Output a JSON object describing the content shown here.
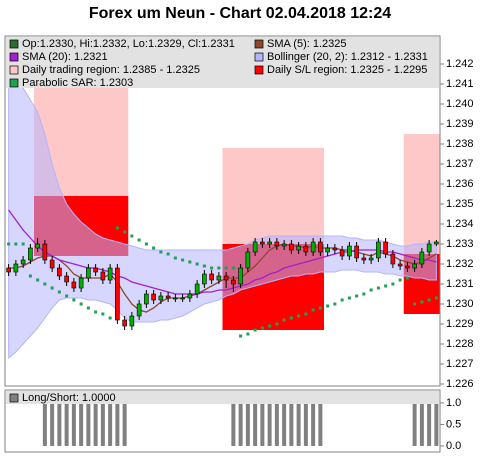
{
  "chart_data": [
    {
      "type": "candlestick",
      "title": "Forex um Neun - Chart 02.04.2018 12:24",
      "ohlc_label": "Op:1.2330, Hi:1.2332, Lo:1.2329, Cl:1.2331",
      "ohlc_color": "#2e6b2e",
      "up_color": "#00b000",
      "down_color": "#ff0000",
      "ylim": [
        1.2259,
        1.2434
      ],
      "yticks": [
        1.226,
        1.227,
        1.228,
        1.229,
        {
          "value": 1.23,
          "label": "1.230"
        },
        1.231,
        1.232,
        1.233,
        1.234,
        1.235,
        1.236,
        1.237,
        1.238,
        1.239,
        {
          "value": 1.24,
          "label": "1.240"
        },
        1.241,
        1.242
      ],
      "open": [
        1.2318,
        1.2316,
        1.232,
        1.2322,
        1.2328,
        1.233,
        1.2322,
        1.2318,
        1.2314,
        1.2311,
        1.2308,
        1.2313,
        1.2318,
        1.2316,
        1.2312,
        1.2318,
        1.2292,
        1.2289,
        1.2294,
        1.23,
        1.2305,
        1.2302,
        1.2304,
        1.2303,
        1.2303,
        1.2303,
        1.2305,
        1.231,
        1.2315,
        1.2312,
        1.2314,
        1.2312,
        1.231,
        1.2318,
        1.2326,
        1.2331,
        1.233,
        1.2331,
        1.2329,
        1.233,
        1.2327,
        1.2329,
        1.2326,
        1.2331,
        1.2326,
        1.2328,
        1.2327,
        1.2324,
        1.2329,
        1.2323,
        1.2322,
        1.2323,
        1.2331,
        1.2325,
        1.232,
        1.2319,
        1.2318,
        1.232,
        1.2326,
        1.233
      ],
      "high": [
        1.232,
        1.2322,
        1.2324,
        1.233,
        1.2333,
        1.2332,
        1.2324,
        1.232,
        1.2316,
        1.2313,
        1.2315,
        1.232,
        1.232,
        1.2318,
        1.232,
        1.232,
        1.2294,
        1.2296,
        1.2302,
        1.2307,
        1.2307,
        1.2306,
        1.2306,
        1.2305,
        1.2305,
        1.2307,
        1.2312,
        1.2317,
        1.2317,
        1.2316,
        1.2316,
        1.2314,
        1.232,
        1.2328,
        1.2333,
        1.2333,
        1.2333,
        1.2333,
        1.2332,
        1.2332,
        1.2331,
        1.2331,
        1.2333,
        1.2333,
        1.233,
        1.233,
        1.2329,
        1.2331,
        1.2331,
        1.2325,
        1.2325,
        1.2333,
        1.2333,
        1.2327,
        1.2322,
        1.2321,
        1.2322,
        1.2328,
        1.2332,
        1.2332
      ],
      "low": [
        1.2314,
        1.2314,
        1.2318,
        1.232,
        1.2326,
        1.232,
        1.2316,
        1.2312,
        1.2309,
        1.2306,
        1.2306,
        1.2311,
        1.2314,
        1.231,
        1.231,
        1.229,
        1.2287,
        1.2287,
        1.2292,
        1.2298,
        1.23,
        1.23,
        1.2301,
        1.2301,
        1.2301,
        1.2301,
        1.2303,
        1.2308,
        1.231,
        1.231,
        1.2308,
        1.2306,
        1.2308,
        1.2316,
        1.2324,
        1.2328,
        1.2328,
        1.2327,
        1.2327,
        1.2325,
        1.2325,
        1.2324,
        1.2324,
        1.2324,
        1.2324,
        1.2325,
        1.2322,
        1.2322,
        1.2321,
        1.232,
        1.232,
        1.2321,
        1.2323,
        1.2318,
        1.2317,
        1.2316,
        1.2316,
        1.2318,
        1.2324,
        1.2329
      ],
      "close": [
        1.2316,
        1.232,
        1.2322,
        1.2328,
        1.233,
        1.2322,
        1.2318,
        1.2314,
        1.2311,
        1.2308,
        1.2313,
        1.2318,
        1.2316,
        1.2312,
        1.2318,
        1.2292,
        1.2289,
        1.2294,
        1.23,
        1.2305,
        1.2302,
        1.2304,
        1.2303,
        1.2303,
        1.2303,
        1.2305,
        1.231,
        1.2315,
        1.2312,
        1.2314,
        1.2312,
        1.231,
        1.2318,
        1.2326,
        1.2331,
        1.233,
        1.2331,
        1.2329,
        1.233,
        1.2327,
        1.2329,
        1.2326,
        1.2331,
        1.2326,
        1.2328,
        1.2327,
        1.2324,
        1.2329,
        1.2323,
        1.2322,
        1.2323,
        1.2331,
        1.2325,
        1.232,
        1.2319,
        1.2318,
        1.232,
        1.2326,
        1.233,
        1.2331
      ],
      "bands": [
        {
          "name": "Bollinger (20, 2): 1.2312 - 1.2331",
          "color": "#b4b4ff",
          "upper": [
            1.2414,
            1.2412,
            1.2408,
            1.2402,
            1.2396,
            1.2385,
            1.237,
            1.2358,
            1.235,
            1.2345,
            1.2341,
            1.2338,
            1.2335,
            1.2333,
            1.2332,
            1.2331,
            1.233,
            1.2329,
            1.2328,
            1.2327,
            1.2327,
            1.2327,
            1.2327,
            1.2327,
            1.2327,
            1.2327,
            1.2327,
            1.2327,
            1.2327,
            1.2327,
            1.2327,
            1.2328,
            1.2329,
            1.233,
            1.2332,
            1.2333,
            1.2334,
            1.2334,
            1.2334,
            1.2334,
            1.2334,
            1.2334,
            1.2334,
            1.2334,
            1.2334,
            1.2334,
            1.2334,
            1.2333,
            1.2333,
            1.2332,
            1.2332,
            1.2332,
            1.2331,
            1.233,
            1.2329,
            1.2329,
            1.233,
            1.233,
            1.2331,
            1.2331
          ],
          "lower": [
            1.2273,
            1.2276,
            1.228,
            1.2284,
            1.2288,
            1.2293,
            1.2298,
            1.2302,
            1.2303,
            1.2303,
            1.2303,
            1.2302,
            1.2302,
            1.2301,
            1.23,
            1.2297,
            1.2293,
            1.2291,
            1.2291,
            1.2291,
            1.2291,
            1.2292,
            1.2292,
            1.2293,
            1.2294,
            1.2296,
            1.2298,
            1.23,
            1.2301,
            1.2302,
            1.2304,
            1.2305,
            1.2307,
            1.2308,
            1.2309,
            1.231,
            1.2311,
            1.2312,
            1.2313,
            1.2314,
            1.2314,
            1.2315,
            1.2315,
            1.2316,
            1.2316,
            1.2316,
            1.2317,
            1.2317,
            1.2317,
            1.2316,
            1.2316,
            1.2316,
            1.2315,
            1.2315,
            1.2314,
            1.2314,
            1.2313,
            1.2313,
            1.2312,
            1.2312
          ]
        }
      ],
      "regions": [
        {
          "name": "Daily trading region: 1.2385 - 1.2325",
          "color": "#ffc8c8",
          "spans": [
            {
              "start": 4,
              "end": 16,
              "low": 1.2325,
              "high": 1.2415
            },
            {
              "start": 30,
              "end": 43,
              "low": 1.2325,
              "high": 1.2378
            },
            {
              "start": 55,
              "end": 59,
              "low": 1.2325,
              "high": 1.2385
            }
          ]
        },
        {
          "name": "Daily S/L region: 1.2325 - 1.2295",
          "color": "#ff0000",
          "spans": [
            {
              "start": 4,
              "end": 16,
              "low": 1.2324,
              "high": 1.2354
            },
            {
              "start": 30,
              "end": 43,
              "low": 1.2287,
              "high": 1.233
            },
            {
              "start": 55,
              "end": 59,
              "low": 1.2295,
              "high": 1.2325
            }
          ]
        }
      ],
      "series": [
        {
          "name": "SMA (5): 1.2325",
          "color": "#8b4a2b",
          "style": "line",
          "values": [
            1.2318,
            1.2318,
            1.2319,
            1.2321,
            1.2323,
            1.2324,
            1.2324,
            1.2322,
            1.2319,
            1.2315,
            1.2313,
            1.2313,
            1.2313,
            1.2313,
            1.2315,
            1.2311,
            1.2305,
            1.23,
            1.2297,
            1.2296,
            1.2298,
            1.2301,
            1.2303,
            1.2303,
            1.2303,
            1.2304,
            1.2305,
            1.2307,
            1.2309,
            1.2311,
            1.2313,
            1.2313,
            1.2313,
            1.2316,
            1.2319,
            1.2323,
            1.2327,
            1.2329,
            1.233,
            1.2329,
            1.2329,
            1.2328,
            1.2329,
            1.2328,
            1.2328,
            1.2328,
            1.2327,
            1.2327,
            1.2326,
            1.2325,
            1.2324,
            1.2326,
            1.2325,
            1.2324,
            1.2322,
            1.2321,
            1.232,
            1.2321,
            1.2323,
            1.2325
          ]
        },
        {
          "name": "SMA (20): 1.2321",
          "color": "#a020d0",
          "style": "line",
          "values": [
            1.2347,
            1.2342,
            1.2337,
            1.2333,
            1.2329,
            1.2326,
            1.2324,
            1.2322,
            1.2321,
            1.232,
            1.2319,
            1.2318,
            1.2318,
            1.2317,
            1.2316,
            1.2314,
            1.2313,
            1.2311,
            1.231,
            1.2309,
            1.2308,
            1.2307,
            1.2306,
            1.2305,
            1.2305,
            1.2305,
            1.2305,
            1.2306,
            1.2306,
            1.2307,
            1.2307,
            1.2308,
            1.2309,
            1.231,
            1.2312,
            1.2313,
            1.2315,
            1.2316,
            1.2318,
            1.2319,
            1.232,
            1.2321,
            1.2322,
            1.2323,
            1.2324,
            1.2325,
            1.2326,
            1.2326,
            1.2327,
            1.2327,
            1.2327,
            1.2327,
            1.2326,
            1.2326,
            1.2325,
            1.2324,
            1.2323,
            1.2322,
            1.2322,
            1.2321
          ]
        },
        {
          "name": "Parabolic SAR: 1.2303",
          "color": "#20a050",
          "style": "dots",
          "values": [
            1.233,
            1.233,
            1.233,
            1.2314,
            1.2312,
            1.231,
            1.2308,
            1.2306,
            1.2304,
            1.2302,
            1.23,
            1.2298,
            1.2296,
            1.2295,
            1.2293,
            1.2338,
            1.2336,
            1.2334,
            1.2332,
            1.233,
            1.2328,
            1.2326,
            1.2325,
            1.2323,
            1.2322,
            1.2321,
            1.232,
            1.2319,
            1.2318,
            1.2318,
            1.2318,
            1.2318,
            1.2284,
            1.2285,
            1.2287,
            1.2288,
            1.2289,
            1.229,
            1.2292,
            1.2293,
            1.2294,
            1.2295,
            1.2297,
            1.2298,
            1.2299,
            1.23,
            1.2302,
            1.2303,
            1.2304,
            1.2305,
            1.2307,
            1.2308,
            1.2309,
            1.231,
            1.2312,
            1.2313,
            1.23,
            1.2301,
            1.2302,
            1.2303
          ]
        }
      ]
    },
    {
      "type": "bar",
      "ylim": [
        -0.14,
        1.3
      ],
      "yticks": [
        {
          "value": 0,
          "label": "0.0"
        },
        0.5,
        {
          "value": 1,
          "label": "1.0"
        }
      ],
      "series": [
        {
          "name": "Long/Short: 1.0000",
          "color": "#808080",
          "values": [
            0,
            0,
            0,
            0,
            0,
            1,
            1,
            1,
            1,
            1,
            1,
            1,
            1,
            1,
            1,
            1,
            1,
            0,
            0,
            0,
            0,
            0,
            0,
            0,
            0,
            0,
            0,
            0,
            0,
            0,
            0,
            1,
            1,
            1,
            1,
            1,
            1,
            1,
            1,
            1,
            1,
            1,
            1,
            1,
            0,
            0,
            0,
            0,
            0,
            0,
            0,
            0,
            0,
            0,
            0,
            0,
            1,
            1,
            1,
            1
          ]
        }
      ]
    }
  ]
}
